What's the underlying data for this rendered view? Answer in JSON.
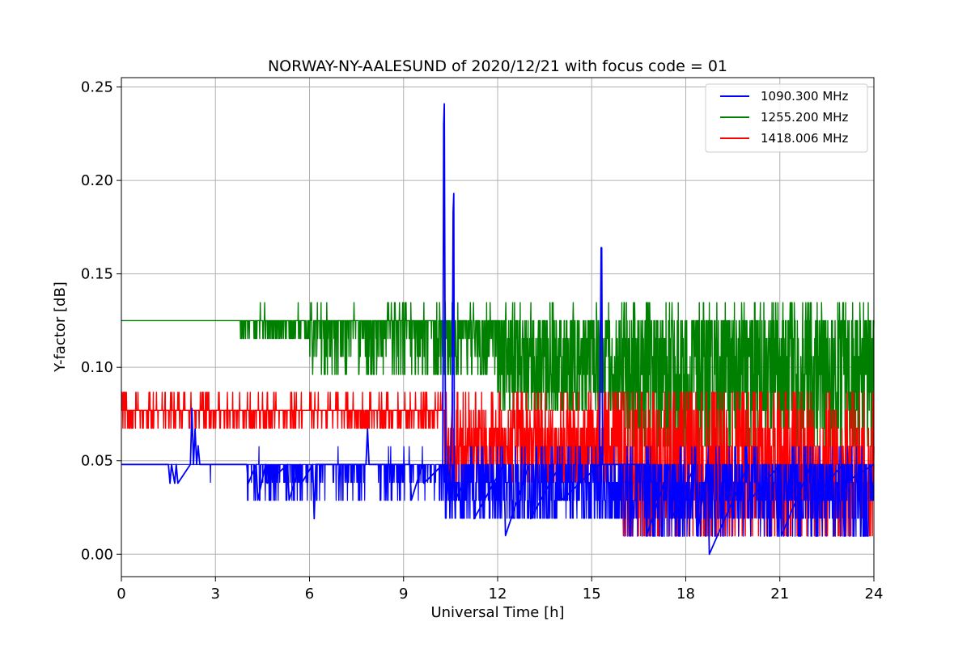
{
  "chart_data": {
    "type": "line",
    "title": "NORWAY-NY-AALESUND of 2020/12/21 with focus code = 01",
    "xlabel": "Universal Time [h]",
    "ylabel": "Y-factor [dB]",
    "xlim": [
      0,
      24
    ],
    "ylim": [
      -0.012,
      0.255
    ],
    "x_ticks": [
      0,
      3,
      6,
      9,
      12,
      15,
      18,
      21,
      24
    ],
    "x_tick_labels": [
      "0",
      "3",
      "6",
      "9",
      "12",
      "15",
      "18",
      "21",
      "24"
    ],
    "y_ticks": [
      0.0,
      0.05,
      0.1,
      0.15,
      0.2,
      0.25
    ],
    "y_tick_labels": [
      "0.00",
      "0.05",
      "0.10",
      "0.15",
      "0.20",
      "0.25"
    ],
    "grid": true,
    "legend_position": "top-right",
    "series": [
      {
        "name": "1090.300 MHz",
        "color": "#0000ff",
        "baseline": 0.048,
        "x": [
          0,
          1.5,
          1.55,
          1.6,
          1.7,
          1.75,
          1.8,
          2.2,
          2.25,
          2.3,
          2.35,
          2.4,
          2.45,
          2.5,
          2.55,
          2.6,
          4.0,
          4.05,
          4.3,
          4.35,
          4.6,
          4.65,
          5.3,
          5.35,
          5.7,
          5.75,
          6.1,
          6.15,
          6.2,
          6.25,
          7.8,
          7.85,
          7.9,
          9.2,
          9.25,
          9.6,
          9.65,
          10.25,
          10.28,
          10.3,
          10.32,
          10.34,
          10.36,
          10.5,
          10.55,
          10.58,
          10.6,
          10.62,
          10.65,
          11.2,
          11.25,
          12.2,
          12.25,
          13.0,
          13.05,
          14.0,
          14.05,
          15.25,
          15.3,
          15.32,
          15.35,
          16.7,
          16.75,
          17.5,
          17.55,
          18.3,
          18.35,
          18.7,
          18.75,
          20.0,
          20.05,
          21.0,
          21.05,
          22.0,
          22.05,
          23.0,
          23.05,
          24.0
        ],
        "y": [
          0.048,
          0.048,
          0.038,
          0.048,
          0.038,
          0.048,
          0.038,
          0.048,
          0.078,
          0.048,
          0.067,
          0.048,
          0.058,
          0.048,
          0.048,
          0.048,
          0.048,
          0.038,
          0.048,
          0.029,
          0.048,
          0.038,
          0.048,
          0.029,
          0.048,
          0.038,
          0.048,
          0.019,
          0.048,
          0.048,
          0.048,
          0.067,
          0.048,
          0.048,
          0.029,
          0.048,
          0.038,
          0.048,
          0.23,
          0.241,
          0.135,
          0.048,
          0.029,
          0.048,
          0.078,
          0.183,
          0.193,
          0.048,
          0.029,
          0.048,
          0.019,
          0.048,
          0.01,
          0.048,
          0.019,
          0.048,
          0.029,
          0.048,
          0.164,
          0.164,
          0.048,
          0.048,
          0.01,
          0.048,
          0.019,
          0.048,
          0.01,
          0.048,
          0.0,
          0.048,
          0.029,
          0.048,
          0.01,
          0.048,
          0.029,
          0.048,
          0.038,
          0.048
        ]
      },
      {
        "name": "1255.200 MHz",
        "color": "#008000",
        "baseline": 0.125
      },
      {
        "name": "1418.006 MHz",
        "color": "#ff0000",
        "baseline": 0.077
      }
    ]
  }
}
